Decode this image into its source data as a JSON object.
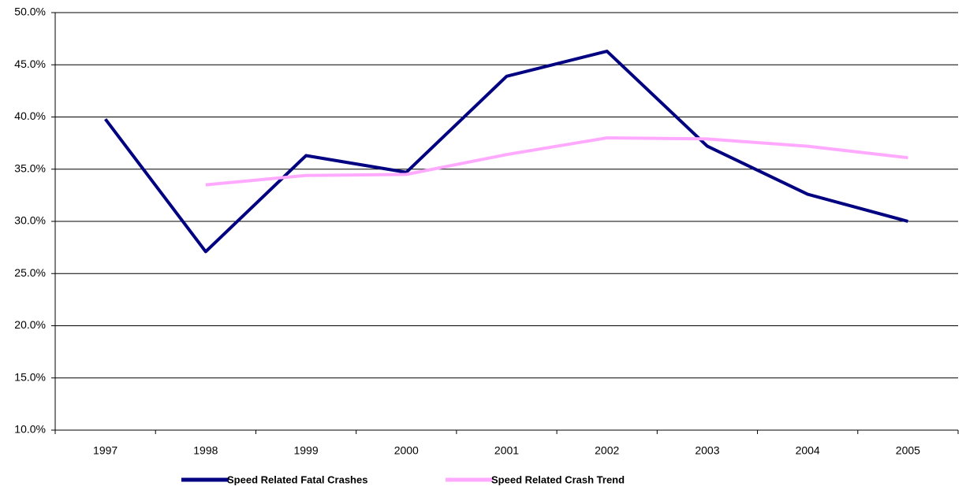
{
  "chart_data": {
    "type": "line",
    "categories": [
      "1997",
      "1998",
      "1999",
      "2000",
      "2001",
      "2002",
      "2003",
      "2004",
      "2005"
    ],
    "series": [
      {
        "name": "Speed Related Fatal Crashes",
        "color": "#000080",
        "values": [
          39.8,
          27.1,
          36.3,
          34.7,
          43.9,
          46.3,
          37.2,
          32.6,
          30.0
        ]
      },
      {
        "name": "Speed Related Crash Trend",
        "color": "#ffaaff",
        "values": [
          null,
          33.5,
          34.4,
          34.5,
          36.4,
          38.0,
          37.9,
          37.2,
          36.1
        ]
      }
    ],
    "ylim": [
      10,
      50
    ],
    "yticks": [
      {
        "value": 10,
        "label": "10.0%"
      },
      {
        "value": 15,
        "label": "15.0%"
      },
      {
        "value": 20,
        "label": "20.0%"
      },
      {
        "value": 25,
        "label": "25.0%"
      },
      {
        "value": 30,
        "label": "30.0%"
      },
      {
        "value": 35,
        "label": "35.0%"
      },
      {
        "value": 40,
        "label": "40.0%"
      },
      {
        "value": 45,
        "label": "45.0%"
      },
      {
        "value": 50,
        "label": "50.0%"
      }
    ],
    "grid": true
  }
}
